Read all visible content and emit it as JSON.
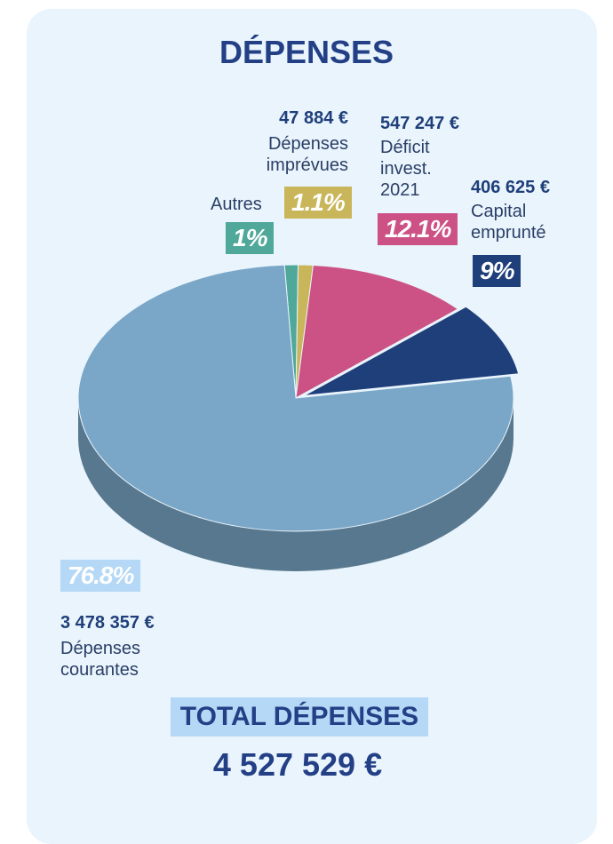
{
  "chart_data": {
    "type": "pie",
    "title": "DÉPENSES",
    "categories": [
      "Autres",
      "Dépenses imprévues",
      "Déficit invest. 2021",
      "Capital emprunté",
      "Dépenses courantes"
    ],
    "values": [
      1,
      1.1,
      12.1,
      9,
      76.8
    ],
    "value_labels": [
      "1%",
      "1.1%",
      "12.1%",
      "9%",
      "76.8%"
    ],
    "amount_labels": [
      null,
      "47 884 €",
      "547 247 €",
      "406 625 €",
      "3 478 357 €"
    ],
    "colors": [
      "#4fa89a",
      "#c9b55a",
      "#cc5285",
      "#1f3f7a",
      "#7aa7c7"
    ],
    "label_colors": [
      "#4fa89a",
      "#c9b55a",
      "#cc5285",
      "#1f3f7a",
      "#b4d8f5"
    ],
    "total_label": "TOTAL DÉPENSES",
    "total": "4 527 529 €"
  }
}
